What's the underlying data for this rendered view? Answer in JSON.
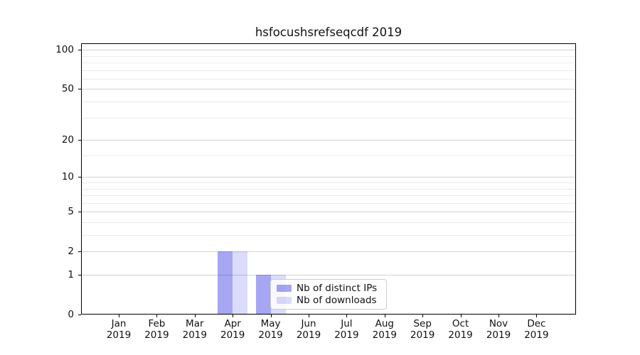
{
  "chart_data": {
    "type": "bar",
    "title": "hsfocushsrefseqcdf 2019",
    "categories": [
      "Jan",
      "Feb",
      "Mar",
      "Apr",
      "May",
      "Jun",
      "Jul",
      "Aug",
      "Sep",
      "Oct",
      "Nov",
      "Dec"
    ],
    "x_year_label": "2019",
    "series": [
      {
        "name": "Nb of distinct IPs",
        "slug": "distinct-ips",
        "color": "rgba(0,0,220,0.35)",
        "values": [
          0,
          0,
          0,
          2,
          1,
          0,
          0,
          0,
          0,
          0,
          0,
          0
        ]
      },
      {
        "name": "Nb of downloads",
        "slug": "downloads",
        "color": "rgba(0,0,220,0.14)",
        "values": [
          0,
          0,
          0,
          2,
          1,
          0,
          0,
          0,
          0,
          0,
          0,
          0
        ]
      }
    ],
    "yscale": "log1p",
    "ylim": [
      0,
      112
    ],
    "y_major_ticks": [
      0,
      1,
      2,
      5,
      10,
      20,
      50,
      100
    ],
    "y_minor_ticks": [
      3,
      4,
      6,
      7,
      8,
      9,
      15,
      30,
      40,
      60,
      70,
      80,
      90
    ],
    "xlabel": "",
    "ylabel": "",
    "grid": "horizontal",
    "legend_position": "lower-center-inside"
  },
  "colors": {
    "grid_major": "#d2d2d2",
    "grid_minor": "#ebebeb",
    "axis": "#000000",
    "legend_border": "#cccccc"
  }
}
